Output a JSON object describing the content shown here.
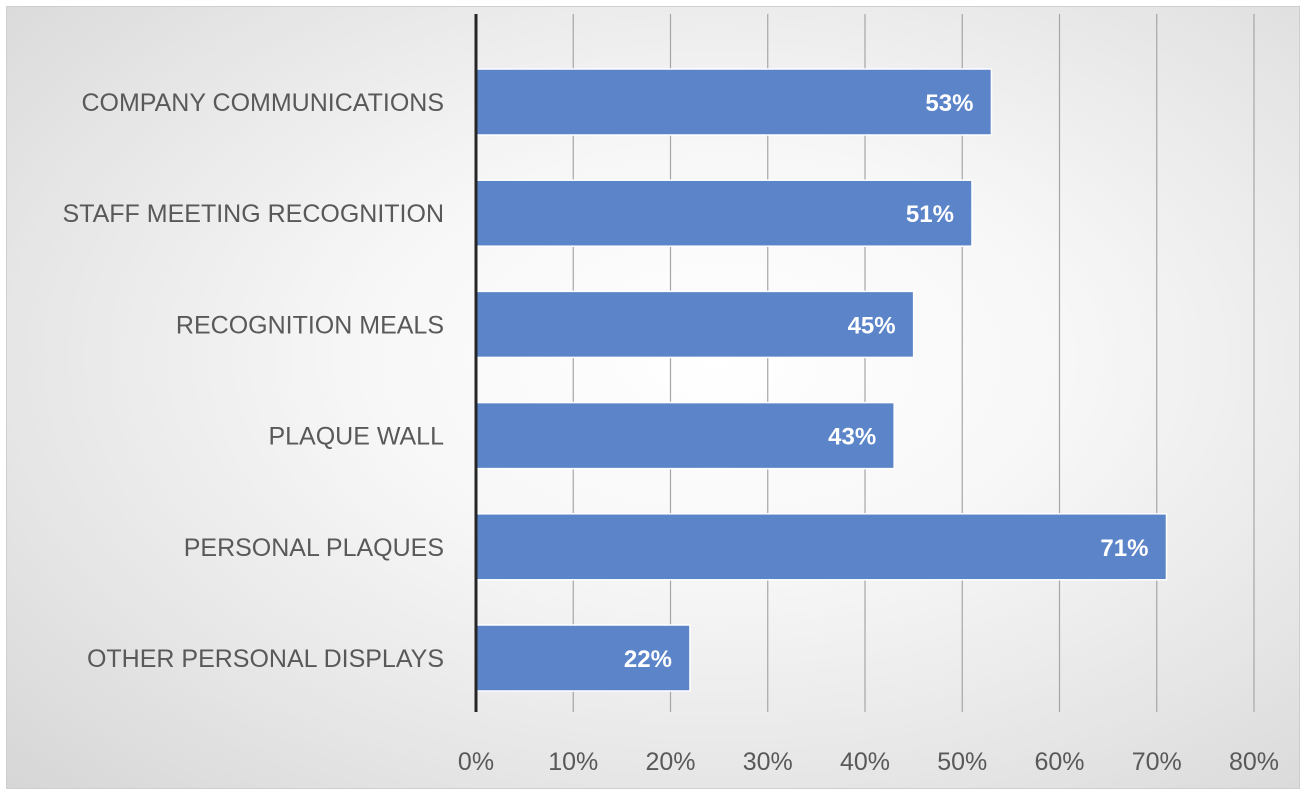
{
  "chart_data": {
    "type": "bar",
    "orientation": "horizontal",
    "categories": [
      "COMPANY COMMUNICATIONS",
      "STAFF MEETING RECOGNITION",
      "RECOGNITION MEALS",
      "PLAQUE WALL",
      "PERSONAL PLAQUES",
      "OTHER PERSONAL DISPLAYS"
    ],
    "values": [
      53,
      51,
      45,
      43,
      71,
      22
    ],
    "data_labels": [
      "53%",
      "51%",
      "45%",
      "43%",
      "71%",
      "22%"
    ],
    "x_ticks": [
      "0%",
      "10%",
      "20%",
      "30%",
      "40%",
      "50%",
      "60%",
      "70%",
      "80%"
    ],
    "xlim": [
      0,
      80
    ],
    "xlabel": "",
    "ylabel": "",
    "title": "",
    "grid": "vertical",
    "legend": "none",
    "colors": {
      "bar": "#5b84c9",
      "gridline": "#a6a6a6",
      "axis": "#262626"
    }
  }
}
